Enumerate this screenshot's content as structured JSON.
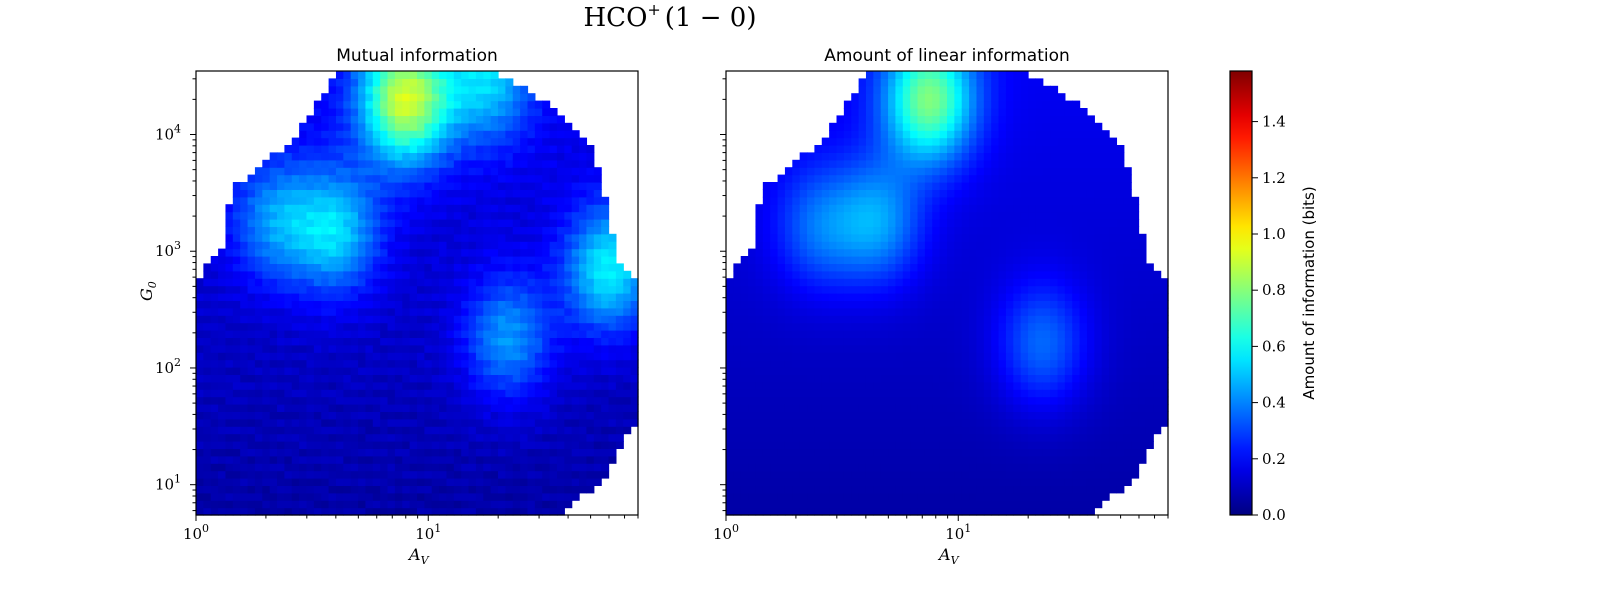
{
  "figure": {
    "suptitle_main": "HCO",
    "suptitle_sup": "+",
    "suptitle_rest": "(1 − 0)"
  },
  "chart_data": [
    {
      "type": "heatmap",
      "title": "Mutual information",
      "xlabel_main": "A",
      "xlabel_sub": "V",
      "ylabel_main": "G",
      "ylabel_sub": "0",
      "x_scale": "log",
      "y_scale": "log",
      "xlim": [
        1,
        80
      ],
      "ylim": [
        5.5,
        35000
      ],
      "x_ticks": [
        {
          "value": 1,
          "base": "10",
          "exp": "0"
        },
        {
          "value": 10,
          "base": "10",
          "exp": "1"
        }
      ],
      "y_ticks": [
        {
          "value": 10,
          "base": "10",
          "exp": "1"
        },
        {
          "value": 100,
          "base": "10",
          "exp": "2"
        },
        {
          "value": 1000,
          "base": "10",
          "exp": "3"
        },
        {
          "value": 10000,
          "base": "10",
          "exp": "4"
        }
      ],
      "hotspots": [
        {
          "av": 8,
          "g0": 20000,
          "bits": 0.75
        },
        {
          "av": 4,
          "g0": 1500,
          "bits": 0.38
        },
        {
          "av": 2.2,
          "g0": 1800,
          "bits": 0.28
        },
        {
          "av": 22,
          "g0": 180,
          "bits": 0.32
        },
        {
          "av": 60,
          "g0": 700,
          "bits": 0.45
        },
        {
          "av": 18,
          "g0": 30000,
          "bits": 0.35
        }
      ]
    },
    {
      "type": "heatmap",
      "title": "Amount of linear information",
      "xlabel_main": "A",
      "xlabel_sub": "V",
      "x_scale": "log",
      "y_scale": "log",
      "xlim": [
        1,
        80
      ],
      "ylim": [
        5.5,
        35000
      ],
      "x_ticks": [
        {
          "value": 1,
          "base": "10",
          "exp": "0"
        },
        {
          "value": 10,
          "base": "10",
          "exp": "1"
        }
      ],
      "hotspots": [
        {
          "av": 7.5,
          "g0": 20000,
          "bits": 0.62
        },
        {
          "av": 4.5,
          "g0": 1800,
          "bits": 0.3
        },
        {
          "av": 2.5,
          "g0": 1600,
          "bits": 0.22
        },
        {
          "av": 23,
          "g0": 160,
          "bits": 0.25
        }
      ]
    }
  ],
  "colorbar": {
    "label": "Amount of information (bits)",
    "range": [
      0.0,
      1.58
    ],
    "colormap": "jet",
    "ticks": [
      "0.0",
      "0.2",
      "0.4",
      "0.6",
      "0.8",
      "1.0",
      "1.2",
      "1.4"
    ]
  }
}
